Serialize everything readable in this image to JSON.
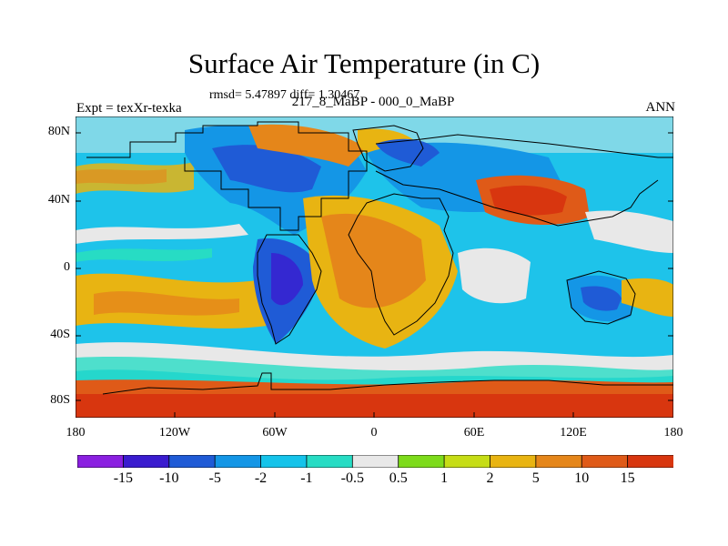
{
  "title": "Surface Air Temperature (in C)",
  "stats": "rmsd= 5.47897 diff= 1.30467",
  "experiment": "Expt = texXr-texka",
  "period": "217_8_MaBP - 000_0_MaBP",
  "season": "ANN",
  "lat_labels": [
    "80N",
    "40N",
    "0",
    "40S",
    "80S"
  ],
  "lon_labels": [
    "180",
    "120W",
    "60W",
    "0",
    "60E",
    "120E",
    "180"
  ],
  "colorbar": {
    "colors": [
      "#8a1fe0",
      "#3a1ccf",
      "#1f5bd6",
      "#1496e6",
      "#15c3ea",
      "#27dcc4",
      "#e8e8e8",
      "#7ddb1b",
      "#c6dd16",
      "#e8b412",
      "#e5861a",
      "#df5a18",
      "#d8360f"
    ],
    "labels": [
      "-15",
      "-10",
      "-5",
      "-2",
      "-1",
      "-0.5",
      "0.5",
      "1",
      "2",
      "5",
      "10",
      "15"
    ]
  }
}
